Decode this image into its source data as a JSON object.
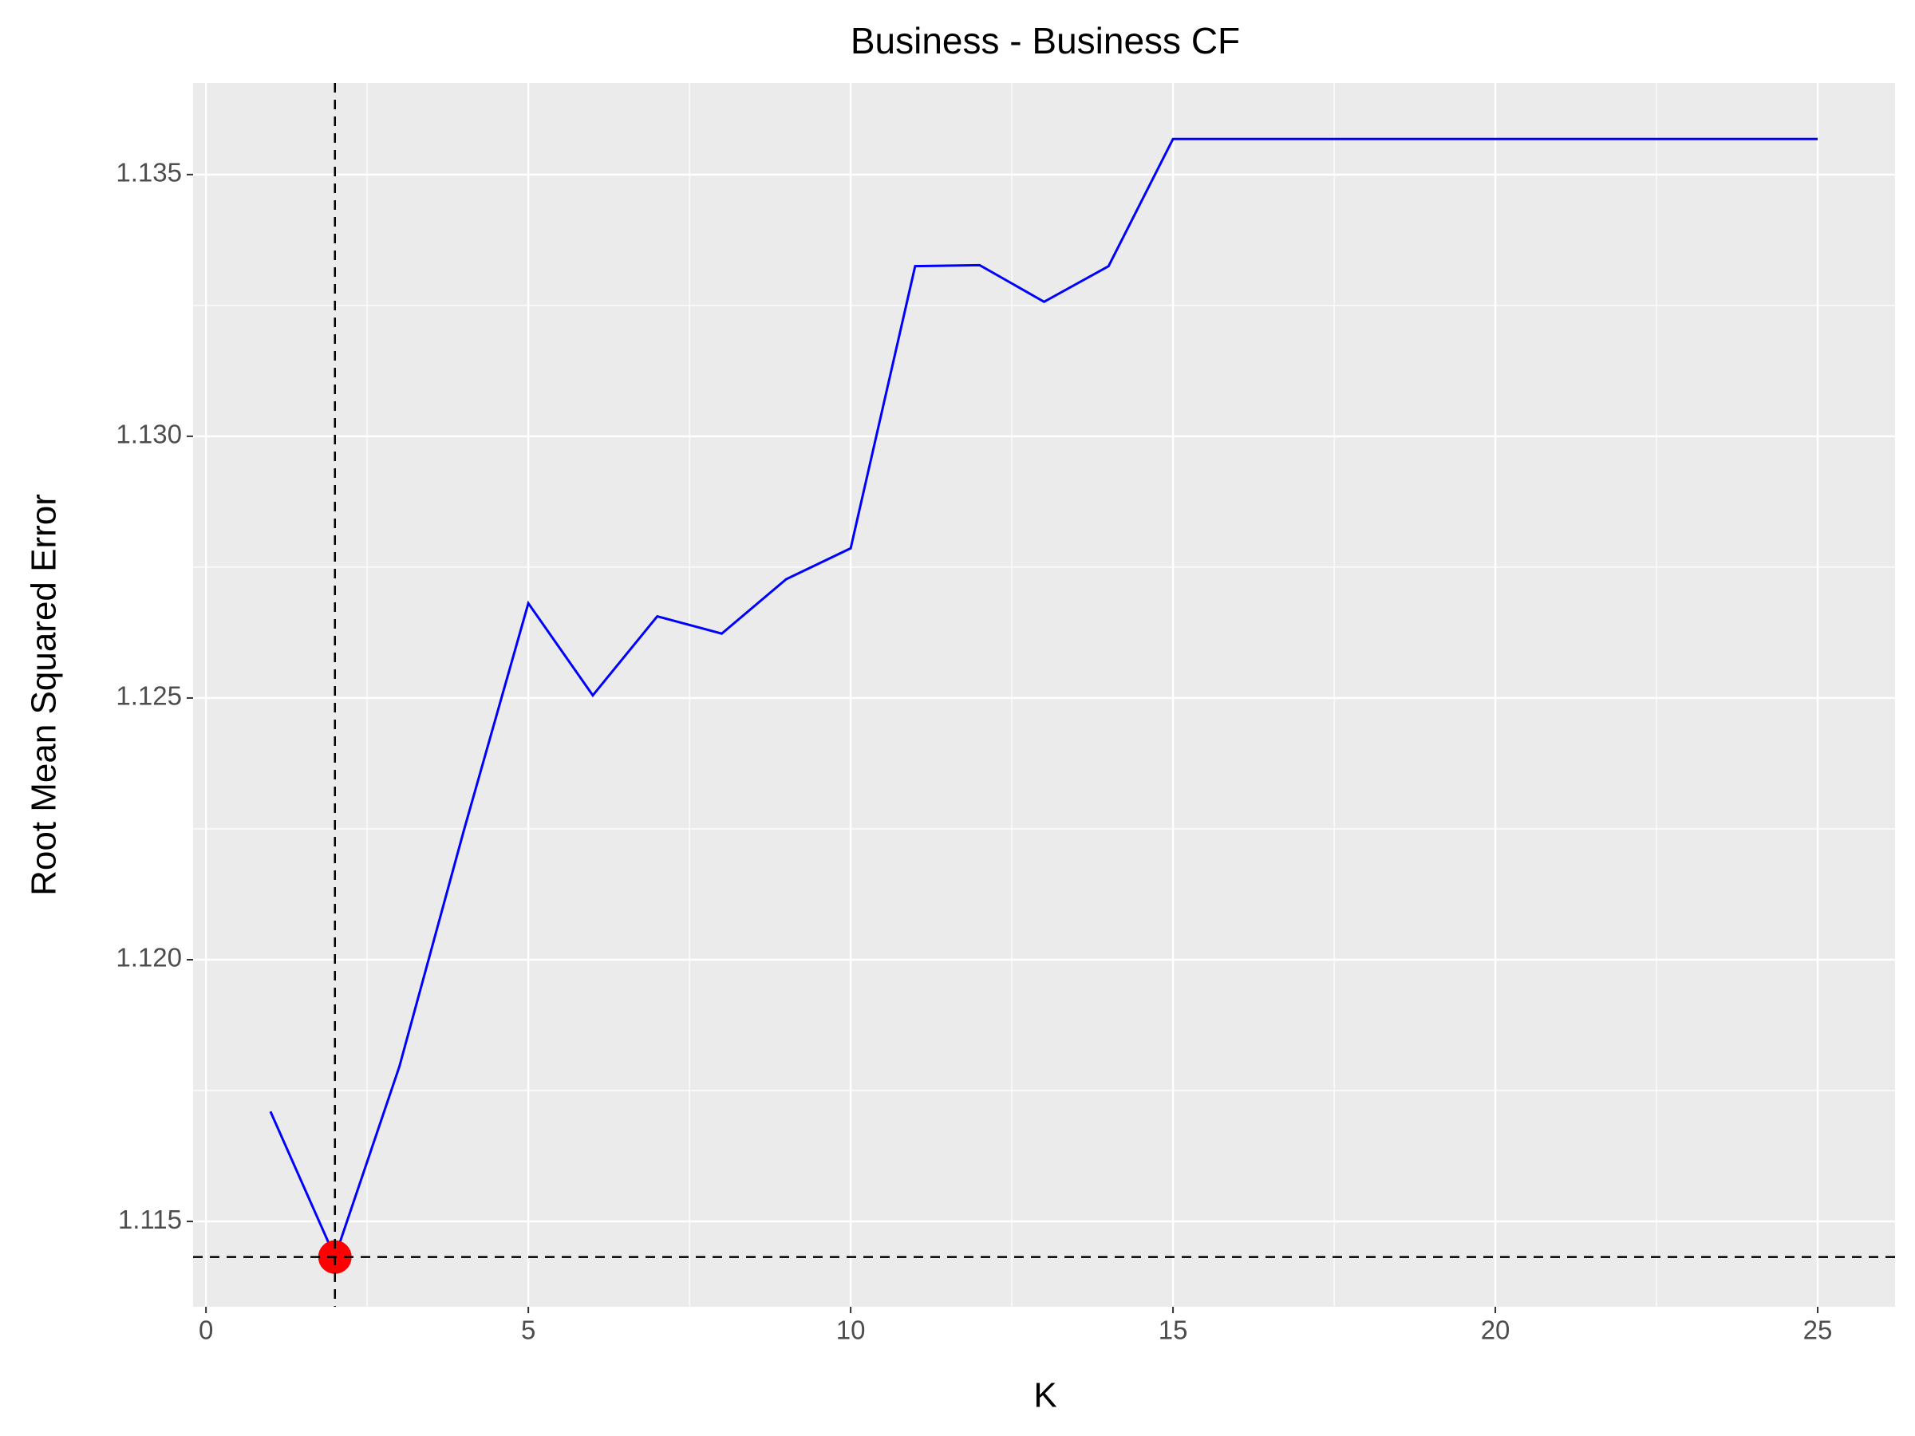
{
  "chart_data": {
    "type": "line",
    "title": "Business - Business CF",
    "x_label": "K",
    "y_label": "Root Mean Squared Error",
    "x": [
      1,
      2,
      3,
      4,
      5,
      6,
      7,
      8,
      9,
      10,
      11,
      12,
      13,
      14,
      15,
      16,
      17,
      18,
      19,
      20,
      21,
      22,
      23,
      24,
      25
    ],
    "series": [
      {
        "name": "RMSE",
        "color": "#0000ff",
        "values": [
          1.1171,
          1.11432,
          1.11796,
          1.12247,
          1.12681,
          1.12505,
          1.12656,
          1.12623,
          1.12727,
          1.12786,
          1.13325,
          1.13327,
          1.13257,
          1.13325,
          1.13568,
          1.13568,
          1.13568,
          1.13568,
          1.13568,
          1.13568,
          1.13568,
          1.13568,
          1.13568,
          1.13568,
          1.13568
        ]
      }
    ],
    "xlim": [
      -0.2,
      26.2
    ],
    "ylim": [
      1.11337,
      1.13675
    ],
    "xticks": [
      0,
      5,
      10,
      15,
      20,
      25
    ],
    "yticks": [
      {
        "value": 1.115,
        "label": "1.115"
      },
      {
        "value": 1.12,
        "label": "1.120"
      },
      {
        "value": 1.125,
        "label": "1.125"
      },
      {
        "value": 1.13,
        "label": "1.130"
      },
      {
        "value": 1.135,
        "label": "1.135"
      }
    ],
    "x_minor_ticks": [
      2.5,
      7.5,
      12.5,
      17.5,
      22.5
    ],
    "y_minor_ticks": [
      1.1175,
      1.1225,
      1.1275,
      1.1325
    ],
    "grid": true,
    "mark_minimum": true,
    "minimum_color": "#ff0000"
  }
}
